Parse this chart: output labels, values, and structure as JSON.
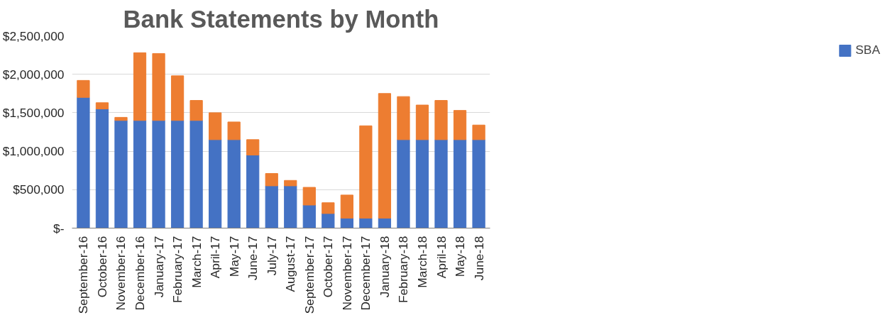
{
  "chart_data": {
    "type": "bar",
    "title": "Bank Statements by Month",
    "stacked": true,
    "categories": [
      "September-16",
      "October-16",
      "November-16",
      "December-16",
      "January-17",
      "February-17",
      "March-17",
      "April-17",
      "May-17",
      "June-17",
      "July-17",
      "August-17",
      "September-17",
      "October-17",
      "November-17",
      "December-17",
      "January-18",
      "February-18",
      "March-18",
      "April-18",
      "May-18",
      "June-18"
    ],
    "series": [
      {
        "name": "SBA",
        "color": "#4472c4",
        "values": [
          1700000,
          1550000,
          1400000,
          1400000,
          1400000,
          1400000,
          1400000,
          1150000,
          1150000,
          950000,
          550000,
          550000,
          300000,
          190000,
          130000,
          130000,
          130000,
          1150000,
          1150000,
          1150000,
          1150000,
          1150000
        ]
      },
      {
        "color": "#ed7d31",
        "values": [
          220000,
          80000,
          40000,
          880000,
          870000,
          580000,
          260000,
          350000,
          230000,
          200000,
          160000,
          70000,
          230000,
          140000,
          300000,
          1200000,
          1620000,
          560000,
          450000,
          510000,
          380000,
          190000
        ]
      }
    ],
    "ylim": [
      0,
      2500000
    ],
    "yticks": [
      {
        "value": 0,
        "label": "$-"
      },
      {
        "value": 500000,
        "label": "$500,000"
      },
      {
        "value": 1000000,
        "label": "$1,000,000"
      },
      {
        "value": 1500000,
        "label": "$1,500,000"
      },
      {
        "value": 2000000,
        "label": "$2,000,000"
      },
      {
        "value": 2500000,
        "label": "$2,500,000"
      }
    ],
    "grid": "y",
    "legend": "right"
  }
}
